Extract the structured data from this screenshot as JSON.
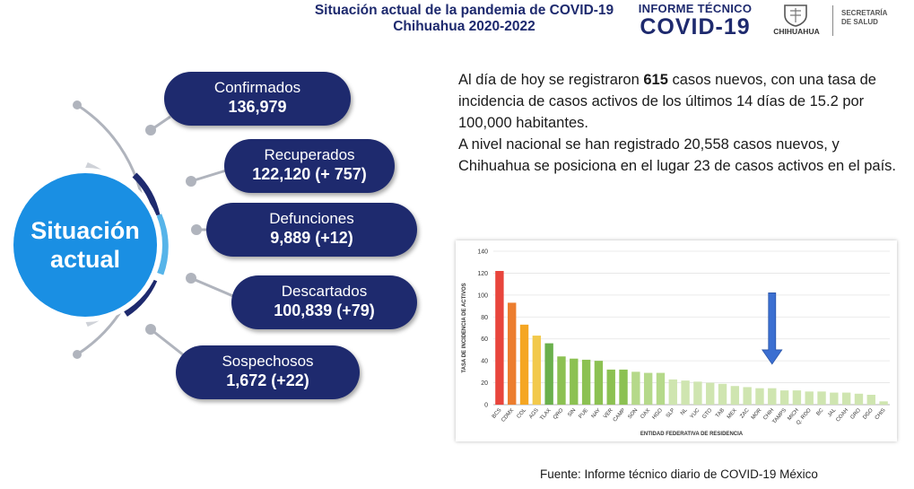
{
  "header": {
    "title_line1": "Situación actual de la pandemia de COVID-19",
    "title_line2": "Chihuahua 2020-2022",
    "brand_line1": "INFORME TÉCNICO",
    "brand_line2": "COVID-19",
    "state_label": "CHIHUAHUA",
    "secretaria_line1": "SECRETARÍA",
    "secretaria_line2": "DE SALUD"
  },
  "center": {
    "label": "Situación\nactual"
  },
  "stats": [
    {
      "label": "Confirmados",
      "value": "136,979"
    },
    {
      "label": "Recuperados",
      "value": "122,120 (+ 757)"
    },
    {
      "label": "Defunciones",
      "value": "9,889 (+12)"
    },
    {
      "label": "Descartados",
      "value": "100,839 (+79)"
    },
    {
      "label": "Sospechosos",
      "value": "1,672 (+22)"
    }
  ],
  "paragraph": {
    "p1_before": "Al día de hoy se registraron ",
    "p1_bold": "615",
    "p1_after": " casos nuevos, con una tasa de incidencia de casos activos de los últimos 14 días de 15.2 por 100,000 habitantes.",
    "p2": "A nivel nacional se han registrado 20,558 casos nuevos, y Chihuahua se posiciona en el lugar 23 de casos activos en el país."
  },
  "source": "Fuente: Informe técnico diario de COVID-19 México",
  "colors": {
    "navy": "#1e2a6e",
    "blue": "#1a8fe3",
    "red": "#e8453c",
    "orange_dark": "#ec7d2e",
    "orange": "#f5a623",
    "yellow": "#f2c94c",
    "green_dark": "#6ab04c",
    "green_mid": "#8cc152",
    "green_light": "#b5d98a",
    "green_pale": "#cfe5b0",
    "arrow": "#3b6fd1"
  },
  "chart_data": {
    "type": "bar",
    "ylabel": "TASA DE INCIDENCIA DE ACTIVOS",
    "xlabel": "ENTIDAD FEDERATIVA DE RESIDENCIA",
    "ylim": [
      0,
      140
    ],
    "yticks": [
      0,
      20,
      40,
      60,
      80,
      100,
      120,
      140
    ],
    "grid": true,
    "highlight": "CHIH",
    "categories": [
      "BCS",
      "CDMX",
      "COL",
      "AGS",
      "TLAX",
      "QRO",
      "SIN",
      "PUE",
      "NAY",
      "VER",
      "CAMP",
      "SON",
      "OAX",
      "HGO",
      "SLP",
      "NL",
      "YUC",
      "GTO",
      "TAB",
      "MEX",
      "ZAC",
      "MOR",
      "CHIH",
      "TAMPS",
      "MICH",
      "Q. ROO",
      "BC",
      "JAL",
      "COAH",
      "GRO",
      "DGO",
      "CHIS"
    ],
    "values": [
      122,
      93,
      73,
      63,
      56,
      44,
      42,
      41,
      40,
      32,
      32,
      30,
      29,
      29,
      23,
      22,
      21,
      20,
      19,
      17,
      16,
      15,
      15,
      13,
      13,
      12,
      12,
      11,
      11,
      10,
      9,
      3
    ],
    "bar_colors": [
      "red",
      "orange_dark",
      "orange",
      "yellow",
      "green_dark",
      "green_mid",
      "green_mid",
      "green_mid",
      "green_mid",
      "green_mid",
      "green_mid",
      "green_light",
      "green_light",
      "green_light",
      "green_pale",
      "green_pale",
      "green_pale",
      "green_pale",
      "green_pale",
      "green_pale",
      "green_pale",
      "green_pale",
      "green_pale",
      "green_pale",
      "green_pale",
      "green_pale",
      "green_pale",
      "green_pale",
      "green_pale",
      "green_pale",
      "green_pale",
      "green_pale"
    ]
  }
}
